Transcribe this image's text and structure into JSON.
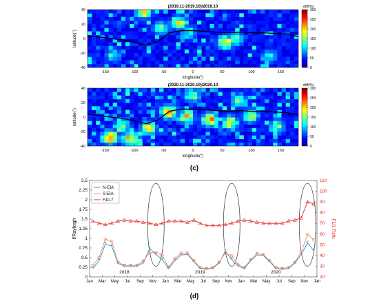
{
  "panel_c_label": "(c)",
  "panel_d_label": "(d)",
  "chart_data": [
    {
      "type": "heatmap",
      "title": "(2019.11-2019.10)/2019.10",
      "xlabel": "longitude(°)",
      "ylabel": "latitude(°)",
      "xlim": [
        -180,
        180
      ],
      "ylim": [
        -40,
        40
      ],
      "x_ticks": [
        -150,
        -100,
        -50,
        0,
        50,
        100,
        150
      ],
      "y_ticks": [
        -40,
        -20,
        0,
        20,
        40
      ],
      "colorbar": {
        "label": "diff(%)",
        "range": [
          0,
          300
        ],
        "ticks": [
          0,
          50,
          100,
          150,
          200,
          250,
          300
        ]
      },
      "grid_cells": {
        "lon_step": 7.2,
        "lat_step": 5,
        "background_value": 0
      },
      "hotspots": [
        {
          "lon": -88,
          "lat": 35,
          "value": 240
        },
        {
          "lon": -58,
          "lat": 12,
          "value": 170
        },
        {
          "lon": -28,
          "lat": 20,
          "value": 220
        },
        {
          "lon": -10,
          "lat": 7,
          "value": 140
        },
        {
          "lon": 52,
          "lat": -7,
          "value": 230
        },
        {
          "lon": 68,
          "lat": -3,
          "value": 160
        },
        {
          "lon": -140,
          "lat": -25,
          "value": 130
        },
        {
          "lon": 128,
          "lat": -27,
          "value": 120
        }
      ],
      "magnetic_equator": {
        "lon": [
          -180,
          -150,
          -120,
          -100,
          -80,
          -60,
          -40,
          -20,
          0,
          20,
          40,
          60,
          80,
          100,
          120,
          140,
          160,
          180
        ],
        "lat": [
          4,
          1,
          -2,
          -5,
          -9,
          -4,
          8,
          11,
          11,
          10,
          9,
          8,
          9,
          8,
          8,
          7,
          6,
          3
        ]
      }
    },
    {
      "type": "heatmap",
      "title": "(2020.11-2020.10)/2020.10",
      "xlabel": "longitude(°)",
      "ylabel": "latitude(°)",
      "xlim": [
        -180,
        180
      ],
      "ylim": [
        -40,
        40
      ],
      "x_ticks": [
        -150,
        -100,
        -50,
        0,
        50,
        100,
        150
      ],
      "y_ticks": [
        -40,
        -20,
        0,
        20,
        40
      ],
      "colorbar": {
        "label": "diff(%)",
        "range": [
          0,
          300
        ],
        "ticks": [
          0,
          50,
          100,
          150,
          200,
          250,
          300
        ]
      },
      "grid_cells": {
        "lon_step": 7.2,
        "lat_step": 5,
        "background_value": 0
      },
      "hotspots": [
        {
          "lon": -145,
          "lat": -30,
          "value": 290
        },
        {
          "lon": -110,
          "lat": -32,
          "value": 260
        },
        {
          "lon": -125,
          "lat": -15,
          "value": 200
        },
        {
          "lon": -80,
          "lat": -18,
          "value": 220
        },
        {
          "lon": -45,
          "lat": 5,
          "value": 270
        },
        {
          "lon": -15,
          "lat": -2,
          "value": 240
        },
        {
          "lon": 25,
          "lat": -5,
          "value": 250
        },
        {
          "lon": 60,
          "lat": -10,
          "value": 230
        },
        {
          "lon": 95,
          "lat": 0,
          "value": 200
        },
        {
          "lon": 75,
          "lat": 20,
          "value": 150
        },
        {
          "lon": 140,
          "lat": -15,
          "value": 170
        },
        {
          "lon": -5,
          "lat": 28,
          "value": 180
        }
      ],
      "magnetic_equator": {
        "lon": [
          -180,
          -150,
          -120,
          -100,
          -80,
          -60,
          -40,
          -20,
          0,
          20,
          40,
          60,
          80,
          100,
          120,
          140,
          160,
          180
        ],
        "lat": [
          4,
          1,
          -2,
          -5,
          -9,
          -4,
          8,
          11,
          11,
          10,
          9,
          8,
          9,
          8,
          8,
          7,
          6,
          3
        ]
      }
    },
    {
      "type": "line",
      "x": [
        "2018-01",
        "2018-02",
        "2018-03",
        "2018-04",
        "2018-05",
        "2018-06",
        "2018-07",
        "2018-08",
        "2018-09",
        "2018-10",
        "2018-11",
        "2018-12",
        "2019-01",
        "2019-02",
        "2019-03",
        "2019-04",
        "2019-05",
        "2019-06",
        "2019-07",
        "2019-08",
        "2019-09",
        "2019-10",
        "2019-11",
        "2019-12",
        "2020-01",
        "2020-02",
        "2020-03",
        "2020-04",
        "2020-05",
        "2020-06",
        "2020-07",
        "2020-08",
        "2020-09",
        "2020-10",
        "2020-11",
        "2020-12"
      ],
      "x_tick_labels": [
        "Jan",
        "Mar",
        "May",
        "Jul",
        "Sep",
        "Nov",
        "Jan",
        "Mar",
        "May",
        "Jul",
        "Sep",
        "Nov",
        "Jan",
        "Mar",
        "May",
        "Jul",
        "Sep",
        "Nov",
        "Jan"
      ],
      "year_labels": [
        "2018",
        "2019",
        "2020"
      ],
      "ylabel": "I/Rayleigh",
      "ylabel_right": "F10.7/sfu",
      "ylim": [
        0,
        2.5
      ],
      "ylim_right": [
        20,
        110
      ],
      "y_ticks": [
        0,
        0.25,
        0.5,
        0.75,
        1,
        1.25,
        1.5,
        1.75,
        2,
        2.25,
        2.5
      ],
      "y_ticks_right": [
        20,
        30,
        40,
        50,
        60,
        70,
        80,
        90,
        100,
        110
      ],
      "legend": "top-left",
      "series": [
        {
          "name": "N-EIA",
          "axis": "left",
          "color": "#1f8fd6",
          "values": [
            0.22,
            0.42,
            0.85,
            0.8,
            0.35,
            0.28,
            0.28,
            0.28,
            0.36,
            0.74,
            0.58,
            0.45,
            0.22,
            0.42,
            0.57,
            0.58,
            0.4,
            0.22,
            0.2,
            0.22,
            0.36,
            0.66,
            0.45,
            0.28,
            0.22,
            0.42,
            0.57,
            0.55,
            0.4,
            0.22,
            0.2,
            0.22,
            0.36,
            0.58,
            0.88,
            0.68
          ]
        },
        {
          "name": "S-EIA",
          "axis": "left",
          "color": "#f08c5a",
          "values": [
            0.3,
            0.5,
            0.98,
            0.92,
            0.38,
            0.3,
            0.3,
            0.3,
            0.42,
            0.62,
            0.64,
            0.56,
            0.25,
            0.48,
            0.62,
            0.62,
            0.42,
            0.24,
            0.22,
            0.24,
            0.38,
            0.62,
            0.55,
            0.32,
            0.24,
            0.45,
            0.6,
            0.58,
            0.42,
            0.24,
            0.22,
            0.24,
            0.38,
            0.64,
            1.1,
            0.96
          ]
        },
        {
          "name": "F10.7",
          "axis": "right",
          "color": "#e8221e",
          "values": [
            72,
            70,
            69,
            70,
            72,
            73,
            72,
            72,
            71,
            70,
            69,
            70,
            72,
            72,
            72,
            71,
            73,
            70,
            68,
            68,
            68,
            69,
            70,
            72,
            73,
            72,
            71,
            70,
            70,
            70,
            70,
            72,
            73,
            75,
            90,
            88
          ]
        }
      ],
      "highlighted_months": [
        "2018-11",
        "2019-11",
        "2020-11"
      ]
    }
  ]
}
